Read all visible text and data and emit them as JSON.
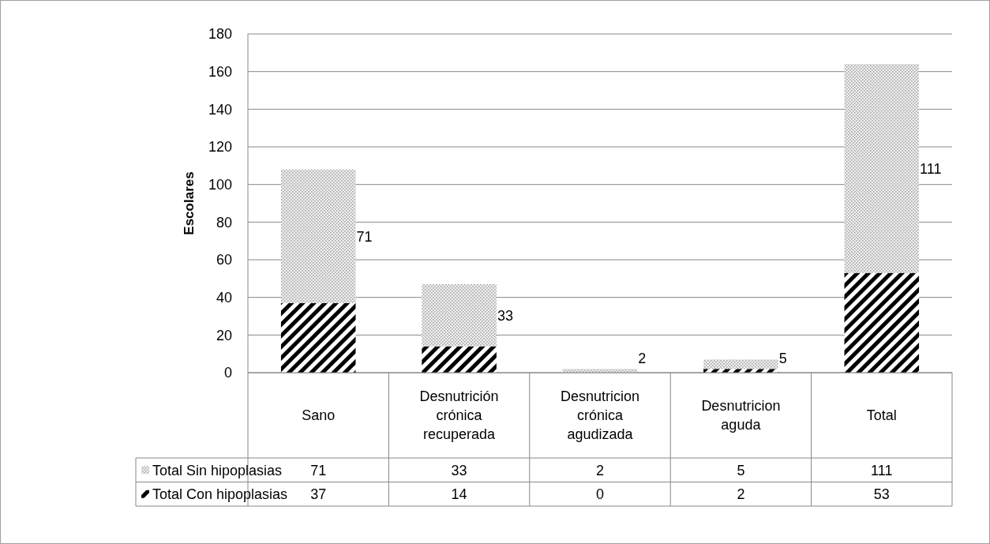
{
  "chart_data": {
    "type": "bar",
    "stacked": true,
    "ylabel": "Escolares",
    "categories": [
      "Sano",
      "Desnutrición crónica recuperada",
      "Desnutricion crónica agudizada",
      "Desnutricion aguda",
      "Total"
    ],
    "series": [
      {
        "name": "Total Con hipoplasias",
        "color": "#000000",
        "values": [
          37,
          14,
          0,
          2,
          53
        ],
        "value_labels": [
          "37",
          "14",
          "0",
          "2",
          "53"
        ]
      },
      {
        "name": "Total Sin hipoplasias",
        "color": "#a6a6a6",
        "values": [
          71,
          33,
          2,
          5,
          111
        ],
        "value_labels": [
          "71",
          "33",
          "2",
          "5",
          "111"
        ]
      }
    ],
    "ylim": [
      0,
      180
    ],
    "yticks": [
      0,
      20,
      40,
      60,
      80,
      100,
      120,
      140,
      160,
      180
    ],
    "grid": "y",
    "legend": "bottom"
  }
}
